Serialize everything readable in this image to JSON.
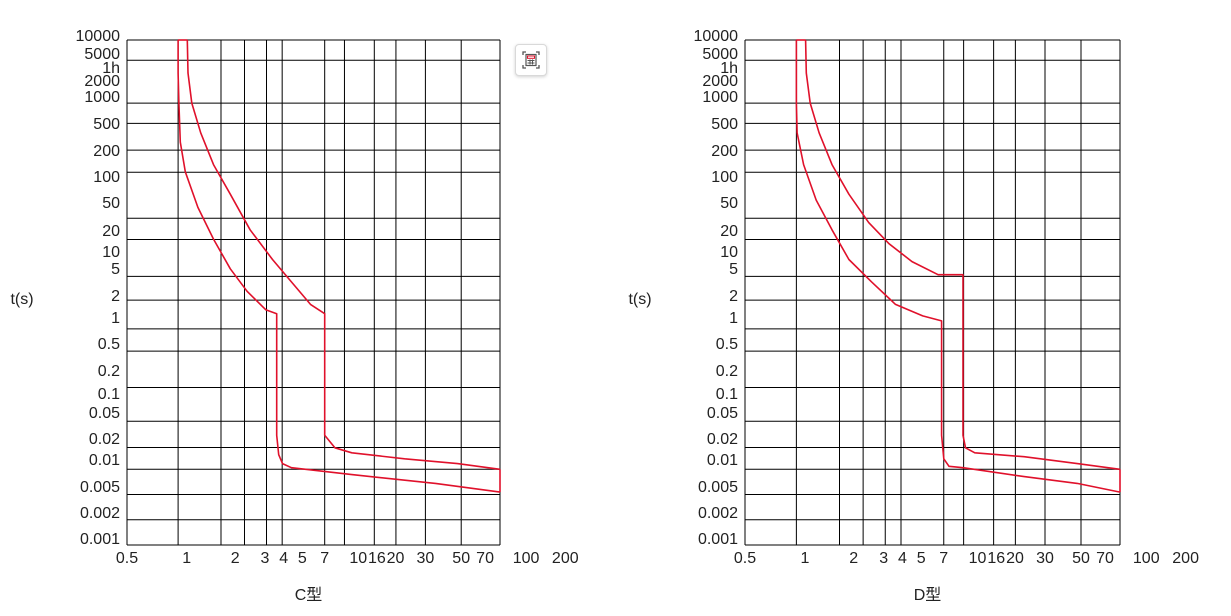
{
  "toolbar": {
    "icon": "calculator-icon"
  },
  "colors": {
    "curve": "#e0112b",
    "grid": "#000000"
  },
  "chart_data": [
    {
      "type": "line",
      "title": "C型",
      "ylabel": "t(s)",
      "xlabel": "",
      "x_scale": "log",
      "y_scale": "log",
      "xlim": [
        0.5,
        70
      ],
      "ylim": [
        0.001,
        10000
      ],
      "x_ticks": [
        "0.5",
        "1",
        "2",
        "3",
        "4",
        "5",
        "7",
        "10",
        "16",
        "20",
        "30",
        "50",
        "70",
        "100",
        "200"
      ],
      "y_ticks": [
        "10000",
        "5000",
        "1h",
        "2000",
        "1000",
        "500",
        "200",
        "100",
        "50",
        "20",
        "10",
        "5",
        "2",
        "1",
        "0.5",
        "0.2",
        "0.1",
        "0.05",
        "0.02",
        "0.01",
        "0.005",
        "0.002",
        "0.001"
      ],
      "series": [
        {
          "points": [
            [
              1.13,
              10000
            ],
            [
              1.14,
              3000
            ],
            [
              1.2,
              1000
            ],
            [
              1.35,
              400
            ],
            [
              1.6,
              150
            ],
            [
              2.0,
              60
            ],
            [
              2.6,
              20
            ],
            [
              3.5,
              8
            ],
            [
              4.5,
              4
            ],
            [
              5.8,
              2
            ],
            [
              7.0,
              1.5
            ],
            [
              7.0,
              0.03
            ],
            [
              8.0,
              0.02
            ],
            [
              10,
              0.017
            ],
            [
              20,
              0.014
            ],
            [
              40,
              0.012
            ],
            [
              70,
              0.01
            ]
          ]
        },
        {
          "points": [
            [
              1.0,
              10000
            ],
            [
              1.0,
              3000
            ],
            [
              1.01,
              1000
            ],
            [
              1.03,
              300
            ],
            [
              1.1,
              120
            ],
            [
              1.3,
              40
            ],
            [
              1.6,
              15
            ],
            [
              2.0,
              6
            ],
            [
              2.5,
              3
            ],
            [
              3.2,
              1.7
            ],
            [
              3.7,
              1.5
            ],
            [
              3.7,
              0.03
            ],
            [
              3.8,
              0.016
            ],
            [
              4.0,
              0.012
            ],
            [
              4.5,
              0.0105
            ],
            [
              10,
              0.0085
            ],
            [
              30,
              0.0065
            ],
            [
              70,
              0.005
            ]
          ]
        },
        {
          "points": [
            [
              70,
              0.005
            ],
            [
              70,
              0.01
            ]
          ]
        }
      ]
    },
    {
      "type": "line",
      "title": "D型",
      "ylabel": "t(s)",
      "xlabel": "",
      "x_scale": "log",
      "y_scale": "log",
      "xlim": [
        0.5,
        70
      ],
      "ylim": [
        0.001,
        10000
      ],
      "x_ticks": [
        "0.5",
        "1",
        "2",
        "3",
        "4",
        "5",
        "7",
        "10",
        "16",
        "20",
        "30",
        "50",
        "70",
        "100",
        "200"
      ],
      "y_ticks": [
        "10000",
        "5000",
        "1h",
        "2000",
        "1000",
        "500",
        "200",
        "100",
        "50",
        "20",
        "10",
        "5",
        "2",
        "1",
        "0.5",
        "0.2",
        "0.1",
        "0.05",
        "0.02",
        "0.01",
        "0.005",
        "0.002",
        "0.001"
      ],
      "series": [
        {
          "points": [
            [
              1.13,
              10000
            ],
            [
              1.14,
              3000
            ],
            [
              1.2,
              1000
            ],
            [
              1.35,
              400
            ],
            [
              1.6,
              150
            ],
            [
              2.0,
              60
            ],
            [
              2.6,
              25
            ],
            [
              3.4,
              13
            ],
            [
              4.6,
              7.5
            ],
            [
              6.5,
              5
            ],
            [
              9.0,
              5
            ],
            [
              9.0,
              0.03
            ],
            [
              9.3,
              0.02
            ],
            [
              10.5,
              0.017
            ],
            [
              20,
              0.015
            ],
            [
              40,
              0.012
            ],
            [
              70,
              0.01
            ]
          ]
        },
        {
          "points": [
            [
              1.0,
              10000
            ],
            [
              1.0,
              3000
            ],
            [
              1.0,
              1000
            ],
            [
              1.01,
              400
            ],
            [
              1.1,
              150
            ],
            [
              1.3,
              50
            ],
            [
              1.6,
              20
            ],
            [
              2.0,
              8
            ],
            [
              2.7,
              4
            ],
            [
              3.7,
              2
            ],
            [
              5.3,
              1.4
            ],
            [
              6.8,
              1.2
            ],
            [
              6.8,
              0.03
            ],
            [
              7.0,
              0.014
            ],
            [
              7.5,
              0.011
            ],
            [
              9.0,
              0.0105
            ],
            [
              20,
              0.008
            ],
            [
              40,
              0.0065
            ],
            [
              70,
              0.005
            ]
          ]
        },
        {
          "points": [
            [
              70,
              0.005
            ],
            [
              70,
              0.01
            ]
          ]
        }
      ]
    }
  ]
}
